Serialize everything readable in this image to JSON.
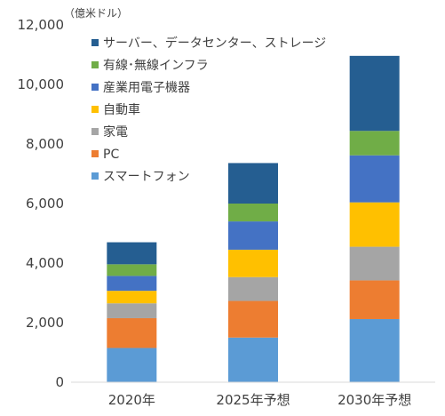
{
  "chart_data": {
    "type": "bar",
    "stacked": true,
    "unit_label": "（億米ドル）",
    "categories": [
      "2020年",
      "2025年予想",
      "2030年予想"
    ],
    "ylim": [
      0,
      12000
    ],
    "yticks": [
      0,
      2000,
      4000,
      6000,
      8000,
      10000,
      12000
    ],
    "ytick_labels": [
      "0",
      "2,000",
      "4,000",
      "6,000",
      "8,000",
      "10,000",
      "12,000"
    ],
    "grid": false,
    "legend_position": "top-right",
    "series": [
      {
        "name": "スマートフォン",
        "color": "#5B9BD5",
        "values": [
          1150,
          1500,
          2120
        ]
      },
      {
        "name": "PC",
        "color": "#ED7D31",
        "values": [
          1000,
          1230,
          1300
        ]
      },
      {
        "name": "家電",
        "color": "#A5A5A5",
        "values": [
          500,
          800,
          1130
        ]
      },
      {
        "name": "自動車",
        "color": "#FFC000",
        "values": [
          420,
          920,
          1490
        ]
      },
      {
        "name": "産業用電子機器",
        "color": "#4472C4",
        "values": [
          500,
          950,
          1580
        ]
      },
      {
        "name": "有線･無線インフラ",
        "color": "#70AD47",
        "values": [
          390,
          600,
          820
        ]
      },
      {
        "name": "サーバー、データセンター、ストレージ",
        "color": "#255E91",
        "values": [
          740,
          1360,
          2520
        ]
      }
    ]
  }
}
